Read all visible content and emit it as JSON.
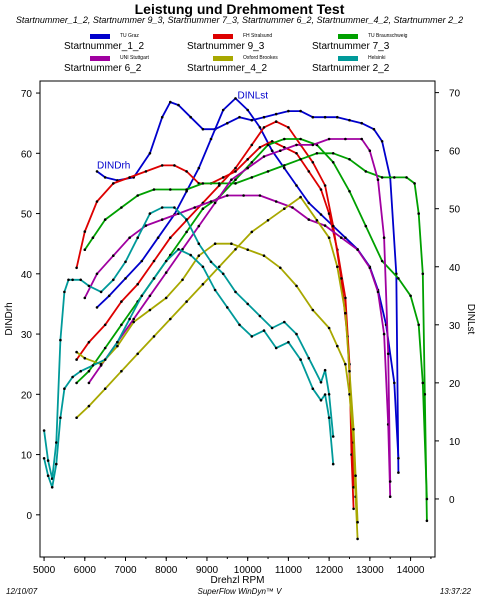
{
  "title": "Leistung und Drehmoment Test",
  "subtitle": "Startnummer_1_2, Startnummer 9_3, Startnummer 7_3, Startnummer 6_2, Startnummer_4_2, Startnummer 2_2",
  "footer": {
    "date": "12/10/07",
    "app": "SuperFlow WinDyn™ V",
    "time": "13:37:22"
  },
  "legend": [
    {
      "team": "TU Graz",
      "name": "Startnummer_1_2",
      "color": "#0000cc"
    },
    {
      "team": "FH Stralsund",
      "name": "Startnummer 9_3",
      "color": "#dd0000"
    },
    {
      "team": "TU Braunschweig",
      "name": "Startnummer 7_3",
      "color": "#00a000"
    },
    {
      "team": "UNI Stuttgart",
      "name": "Startnummer 6_2",
      "color": "#a000a0"
    },
    {
      "team": "Oxford Brookes",
      "name": "Startnummer_4_2",
      "color": "#a8a800"
    },
    {
      "team": "Helsinki",
      "name": "Startnummer 2_2",
      "color": "#009a9a"
    }
  ],
  "chart_data": {
    "type": "line",
    "xlabel": "Drehzl  RPM",
    "ylabel_left": "DINDrh",
    "ylabel_right": "DINLst",
    "xlim": [
      4900,
      14600
    ],
    "ylim_left": [
      -7,
      72
    ],
    "ylim_right": [
      -10,
      72
    ],
    "xticks": [
      5000,
      6000,
      7000,
      8000,
      9000,
      10000,
      11000,
      12000,
      13000,
      14000
    ],
    "yticks_left": [
      0,
      10,
      20,
      30,
      40,
      50,
      60,
      70
    ],
    "yticks_right": [
      0,
      10,
      20,
      30,
      40,
      50,
      60,
      70
    ],
    "grid": false,
    "annotations": [
      {
        "text": "DINLst",
        "x": 9750,
        "y": 69
      },
      {
        "text": "DINDrh",
        "x": 6300,
        "y": 57.5
      }
    ],
    "series": [
      {
        "name": "Startnummer_1_2",
        "color": "#0000cc",
        "quantity": "DINDrh",
        "x": [
          6300,
          6500,
          6800,
          7200,
          7600,
          7900,
          8100,
          8300,
          8600,
          8900,
          9200,
          9500,
          9800,
          10100,
          10400,
          10700,
          11000,
          11300,
          11600,
          11900,
          12200,
          12500,
          12800,
          13100,
          13300,
          13500,
          13650,
          13700
        ],
        "y": [
          57,
          56,
          55.5,
          56,
          60,
          66,
          68.5,
          68,
          66,
          64,
          64,
          65,
          66,
          65.5,
          66,
          66.5,
          67,
          67,
          66,
          66,
          66,
          65.5,
          65,
          64,
          62,
          56,
          40,
          7
        ]
      },
      {
        "name": "Startnummer_1_2",
        "color": "#0000cc",
        "quantity": "DINLst",
        "x": [
          6300,
          6600,
          7000,
          7400,
          7800,
          8200,
          8500,
          8800,
          9100,
          9400,
          9700,
          10000,
          10300,
          10600,
          10900,
          11200,
          11500,
          11800,
          12100,
          12400,
          12700,
          13000,
          13200,
          13400,
          13600,
          13700
        ],
        "y": [
          33,
          35,
          38,
          41,
          45,
          49,
          53,
          57,
          62,
          67,
          69,
          67,
          64,
          60,
          57,
          54,
          51,
          49,
          47,
          45,
          43,
          40,
          36,
          30,
          20,
          7
        ]
      },
      {
        "name": "Startnummer 9_3",
        "color": "#dd0000",
        "quantity": "DINDrh",
        "x": [
          5800,
          6000,
          6300,
          6700,
          7100,
          7500,
          7900,
          8200,
          8500,
          8800,
          9100,
          9400,
          9700,
          10000,
          10300,
          10600,
          10900,
          11200,
          11500,
          11800,
          12000,
          12200,
          12400,
          12500,
          12550,
          12600
        ],
        "y": [
          41,
          47,
          52,
          55,
          56,
          57,
          58,
          58,
          57,
          55,
          55,
          56,
          57,
          59,
          61,
          62,
          61,
          60,
          57,
          54,
          50,
          44,
          36,
          25,
          10,
          1
        ]
      },
      {
        "name": "Startnummer 9_3",
        "color": "#dd0000",
        "quantity": "DINLst",
        "x": [
          5800,
          6100,
          6500,
          6900,
          7300,
          7700,
          8100,
          8500,
          8900,
          9300,
          9700,
          10100,
          10400,
          10700,
          11000,
          11300,
          11600,
          11900,
          12100,
          12300,
          12450,
          12550,
          12600
        ],
        "y": [
          24,
          27,
          30,
          34,
          37,
          41,
          45,
          48,
          51,
          54,
          57,
          61,
          64,
          65,
          64,
          61,
          58,
          54,
          47,
          38,
          28,
          15,
          2
        ]
      },
      {
        "name": "Startnummer 7_3",
        "color": "#00a000",
        "quantity": "DINDrh",
        "x": [
          6000,
          6200,
          6500,
          6900,
          7300,
          7700,
          8100,
          8500,
          8900,
          9300,
          9700,
          10100,
          10500,
          10900,
          11300,
          11700,
          12100,
          12500,
          12900,
          13300,
          13600,
          13900,
          14100,
          14200,
          14300,
          14350,
          14400
        ],
        "y": [
          44,
          46,
          49,
          51,
          53,
          54,
          54,
          54,
          55,
          55,
          55,
          56,
          57,
          58,
          59,
          60,
          60,
          59,
          57,
          56,
          56,
          56,
          55,
          50,
          40,
          20,
          -1
        ]
      },
      {
        "name": "Startnummer 7_3",
        "color": "#00a000",
        "quantity": "DINLst",
        "x": [
          5800,
          6100,
          6500,
          6900,
          7300,
          7700,
          8100,
          8500,
          8900,
          9300,
          9700,
          10100,
          10500,
          10900,
          11300,
          11700,
          12100,
          12500,
          12900,
          13300,
          13700,
          14000,
          14200,
          14300,
          14400
        ],
        "y": [
          20,
          22,
          26,
          30,
          34,
          38,
          42,
          46,
          50,
          52,
          55,
          58,
          61,
          62,
          62,
          61,
          58,
          53,
          47,
          41,
          38,
          35,
          30,
          20,
          0
        ]
      },
      {
        "name": "Startnummer 6_2",
        "color": "#a000a0",
        "quantity": "DINDrh",
        "x": [
          6000,
          6300,
          6700,
          7100,
          7500,
          7900,
          8300,
          8700,
          9100,
          9500,
          9900,
          10300,
          10700,
          11100,
          11500,
          11900,
          12300,
          12700,
          13000,
          13200,
          13350,
          13450,
          13500
        ],
        "y": [
          36,
          40,
          43,
          46,
          48,
          49,
          50,
          51,
          52,
          53,
          53,
          53,
          52,
          51,
          49,
          48,
          46,
          44,
          41,
          37,
          30,
          15,
          3
        ]
      },
      {
        "name": "Startnummer 6_2",
        "color": "#a000a0",
        "quantity": "DINLst",
        "x": [
          6100,
          6400,
          6800,
          7200,
          7600,
          8000,
          8400,
          8800,
          9200,
          9600,
          10000,
          10400,
          10800,
          11200,
          11600,
          12000,
          12400,
          12800,
          13000,
          13200,
          13350,
          13450,
          13500
        ],
        "y": [
          20,
          23,
          27,
          31,
          35,
          39,
          43,
          47,
          51,
          55,
          57,
          59,
          60,
          61,
          61,
          62,
          62,
          62,
          60,
          55,
          45,
          25,
          3
        ]
      },
      {
        "name": "Startnummer_4_2",
        "color": "#a8a800",
        "quantity": "DINDrh",
        "x": [
          5800,
          6000,
          6400,
          6800,
          7200,
          7600,
          8000,
          8400,
          8800,
          9200,
          9600,
          10000,
          10400,
          10800,
          11200,
          11600,
          12000,
          12200,
          12400,
          12500,
          12600,
          12650,
          12700
        ],
        "y": [
          27,
          26,
          25,
          28,
          32,
          34,
          36,
          39,
          43,
          45,
          45,
          44,
          43,
          41,
          38,
          34,
          31,
          28,
          25,
          20,
          12,
          3,
          -4
        ]
      },
      {
        "name": "Startnummer_4_2",
        "color": "#a8a800",
        "quantity": "DINLst",
        "x": [
          5800,
          6100,
          6500,
          6900,
          7300,
          7700,
          8100,
          8500,
          8900,
          9300,
          9700,
          10100,
          10500,
          10900,
          11300,
          11700,
          12000,
          12200,
          12400,
          12500,
          12600,
          12650,
          12700
        ],
        "y": [
          14,
          16,
          19,
          22,
          25,
          28,
          31,
          34,
          37,
          40,
          43,
          46,
          48,
          50,
          52,
          48,
          45,
          40,
          32,
          22,
          12,
          4,
          -4
        ]
      },
      {
        "name": "Startnummer 2_2",
        "color": "#009a9a",
        "quantity": "DINDrh",
        "x": [
          5000,
          5100,
          5200,
          5300,
          5400,
          5500,
          5600,
          5700,
          5900,
          6100,
          6400,
          6700,
          7000,
          7300,
          7600,
          7900,
          8200,
          8500,
          8800,
          9100,
          9400,
          9700,
          10000,
          10300,
          10600,
          10900,
          11200,
          11500,
          11800,
          11900,
          12000,
          12100
        ],
        "y": [
          14,
          9,
          6,
          12,
          29,
          37,
          39,
          39,
          39,
          38,
          37,
          39,
          42,
          46,
          50,
          51,
          51,
          49,
          45,
          42,
          40,
          37,
          35,
          33,
          31,
          32,
          30,
          26,
          22,
          24,
          20,
          13
        ]
      },
      {
        "name": "Startnummer 2_2",
        "color": "#009a9a",
        "quantity": "DINLst",
        "x": [
          5000,
          5100,
          5200,
          5300,
          5400,
          5500,
          5700,
          5900,
          6200,
          6500,
          6800,
          7100,
          7400,
          7700,
          8000,
          8300,
          8600,
          8900,
          9200,
          9500,
          9800,
          10100,
          10400,
          10700,
          11000,
          11300,
          11600,
          11800,
          11900,
          12000,
          12100
        ],
        "y": [
          7,
          4,
          2,
          6,
          14,
          19,
          21,
          22,
          23,
          24,
          27,
          31,
          35,
          38,
          41,
          43,
          42,
          40,
          36,
          33,
          30,
          28,
          29,
          26,
          27,
          24,
          19,
          17,
          18,
          14,
          6
        ]
      }
    ]
  }
}
